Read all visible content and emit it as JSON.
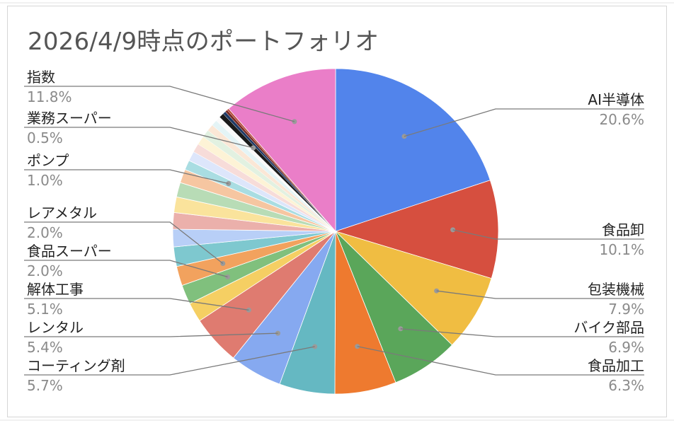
{
  "title": "2026/4/9時点のポートフォリオ",
  "chart_data": {
    "type": "pie",
    "title": "2026/4/9時点のポートフォリオ",
    "slices": [
      {
        "label": "AI半導体",
        "pct": "20.6%",
        "value": 20.6,
        "color": "#5284eb"
      },
      {
        "label": "食品卸",
        "pct": "10.1%",
        "value": 10.1,
        "color": "#d64f3f"
      },
      {
        "label": "包装機械",
        "pct": "7.9%",
        "value": 7.9,
        "color": "#f0bd42"
      },
      {
        "label": "バイク部品",
        "pct": "6.9%",
        "value": 6.9,
        "color": "#5aa65a"
      },
      {
        "label": "食品加工",
        "pct": "6.3%",
        "value": 6.3,
        "color": "#ee7a2f"
      },
      {
        "label": "コーティング剤",
        "pct": "5.7%",
        "value": 5.7,
        "color": "#65b8c2"
      },
      {
        "label": "レンタル",
        "pct": "5.4%",
        "value": 5.4,
        "color": "#86a9f0"
      },
      {
        "label": "解体工事",
        "pct": "5.1%",
        "value": 5.1,
        "color": "#df7b70"
      },
      {
        "label": "",
        "pct": "",
        "value": 2.0,
        "color": "#f5cf63"
      },
      {
        "label": "食品スーパー",
        "pct": "2.0%",
        "value": 2.0,
        "color": "#80c07d"
      },
      {
        "label": "レアメタル",
        "pct": "2.0%",
        "value": 2.0,
        "color": "#f2a25e"
      },
      {
        "label": "",
        "pct": "",
        "value": 2.0,
        "color": "#7ec8cf"
      },
      {
        "label": "",
        "pct": "",
        "value": 1.8,
        "color": "#b8cff7"
      },
      {
        "label": "",
        "pct": "",
        "value": 1.7,
        "color": "#ebb0ab"
      },
      {
        "label": "",
        "pct": "",
        "value": 1.6,
        "color": "#fae39c"
      },
      {
        "label": "",
        "pct": "",
        "value": 1.5,
        "color": "#b8dcb6"
      },
      {
        "label": "",
        "pct": "",
        "value": 1.4,
        "color": "#f6c6a1"
      },
      {
        "label": "ポンプ",
        "pct": "1.0%",
        "value": 1.0,
        "color": "#a9dde2"
      },
      {
        "label": "",
        "pct": "",
        "value": 1.0,
        "color": "#dde6fb"
      },
      {
        "label": "",
        "pct": "",
        "value": 0.9,
        "color": "#f7dcd9"
      },
      {
        "label": "",
        "pct": "",
        "value": 0.9,
        "color": "#fdf3d6"
      },
      {
        "label": "",
        "pct": "",
        "value": 0.8,
        "color": "#e2f1e1"
      },
      {
        "label": "",
        "pct": "",
        "value": 0.7,
        "color": "#fbe7d6"
      },
      {
        "label": "",
        "pct": "",
        "value": 0.6,
        "color": "#e4f4f6"
      },
      {
        "label": "",
        "pct": "",
        "value": 0.5,
        "color": "#fafafa"
      },
      {
        "label": "業務スーパー",
        "pct": "0.5%",
        "value": 0.5,
        "color": "#1a1a1a"
      },
      {
        "label": "",
        "pct": "",
        "value": 0.3,
        "color": "#1e3a66"
      },
      {
        "label": "",
        "pct": "",
        "value": 0.25,
        "color": "#7a2a22"
      },
      {
        "label": "",
        "pct": "",
        "value": 0.2,
        "color": "#b84b3c"
      },
      {
        "label": "指数",
        "pct": "11.8%",
        "value": 11.8,
        "color": "#ea7ec8"
      }
    ]
  }
}
